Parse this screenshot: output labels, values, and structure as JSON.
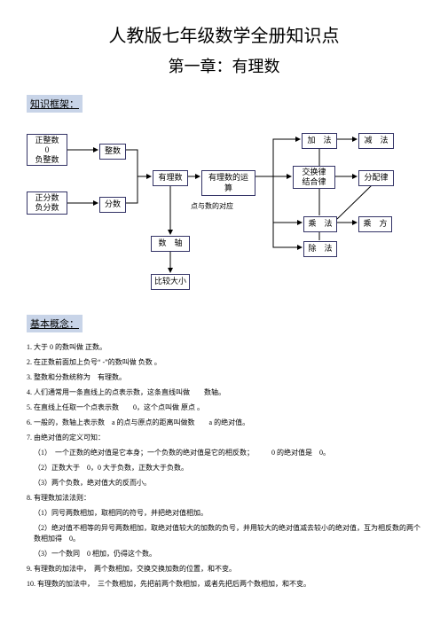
{
  "title_main": "人教版七年级数学全册知识点",
  "title_sub": "第一章：有理数",
  "section_framework": "知识框架：",
  "section_concepts": "基本概念：",
  "nodes": {
    "n_int_types": "正整数\n0\n负整数",
    "n_integer": "整数",
    "n_frac_types": "正分数\n负分数",
    "n_fraction": "分数",
    "n_rational": "有理数",
    "n_rational_op": "有理数的运算",
    "n_point_map": "点与数的对应",
    "n_axis": "数　轴",
    "n_compare": "比较大小",
    "n_add": "加　法",
    "n_sub": "减　法",
    "n_exchange": "交换律\n结合律",
    "n_dist": "分配律",
    "n_mul": "乘　法",
    "n_pow": "乘　方",
    "n_div": "除　法"
  },
  "lines": [
    "1. 大于 0 的数叫做 正数。",
    "2. 在正数前面加上负号“ -”的数叫做 负数 。",
    "3. 整数和分数统称为　有理数。",
    "4. 人们通常用一条直线上的点表示数，这条直线叫做　　数轴。",
    "5. 在直线上任取一个点表示数　　0，这个点叫做 原点 。",
    "6. 一般的，数轴上表示数　a 的点与原点的距离叫做数　　a 的绝对值。",
    "7. 由绝对值的定义可知：",
    "（1）　一个正数的绝对值是它本身；一个负数的绝对值是它的相反数；　　　0 的绝对值是　0。",
    "（2）正数大于　0，0 大于负数，正数大于负数。",
    "（3）两个负数，绝对值大的反而小。",
    "8. 有理数加法法则：",
    "（1）同号两数相加，取相同的符号，并把绝对值相加。",
    "（2）绝对值不相等的异号两数相加，取绝对值较大的加数的负号，并用较大的绝对值减去较小的绝对值，互为相反数的两个数相加得　0。",
    "（3）一个数同　0 相加，仍得这个数。",
    "9. 有理数的加法中，　两个数相加，交换交换加数的位置，和不变。",
    "10. 有理数的加法中，　三个数相加，先把前两个数相加，或者先把后两个数相加，和不变。"
  ],
  "colors": {
    "node_border": "#333366",
    "arrow": "#000000",
    "highlight_bg": "#c8d4e8"
  }
}
